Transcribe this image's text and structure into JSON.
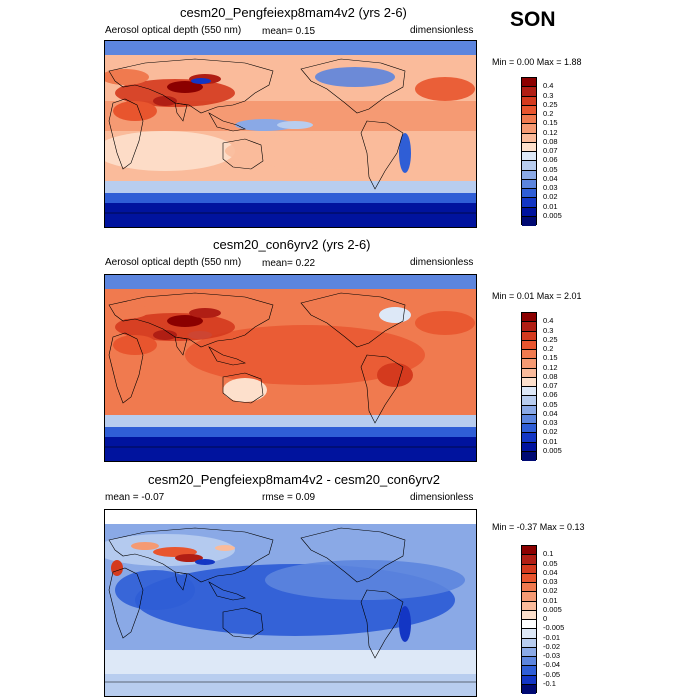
{
  "season": "SON",
  "panels": [
    {
      "title": "cesm20_Pengfeiexp8mam4v2 (yrs 2-6)",
      "left_label": "Aerosol optical depth (550 nm)",
      "stat_label": "mean=  0.15",
      "stat2_label": "",
      "units": "dimensionless",
      "minmax": "Min =  0.00 Max =  1.88",
      "scheme": "abs1",
      "labels": [
        "0.4",
        "0.3",
        "0.25",
        "0.2",
        "0.15",
        "0.12",
        "0.08",
        "0.07",
        "0.06",
        "0.05",
        "0.04",
        "0.03",
        "0.02",
        "0.01",
        "0.005"
      ],
      "colors": [
        "#8b0000",
        "#b01e14",
        "#d43a1e",
        "#e8552e",
        "#f07a4f",
        "#f59a73",
        "#fabb9b",
        "#fde0cc",
        "#dde8f7",
        "#b8cdef",
        "#8aa9e6",
        "#5c85de",
        "#2f5ed6",
        "#1336c4",
        "#00139e",
        "#000a73"
      ]
    },
    {
      "title": "cesm20_con6yrv2 (yrs 2-6)",
      "left_label": "Aerosol optical depth (550 nm)",
      "stat_label": "mean=  0.22",
      "stat2_label": "",
      "units": "dimensionless",
      "minmax": "Min =  0.01 Max =  2.01",
      "scheme": "abs2",
      "labels": [
        "0.4",
        "0.3",
        "0.25",
        "0.2",
        "0.15",
        "0.12",
        "0.08",
        "0.07",
        "0.06",
        "0.05",
        "0.04",
        "0.03",
        "0.02",
        "0.01",
        "0.005"
      ],
      "colors": [
        "#8b0000",
        "#b01e14",
        "#d43a1e",
        "#e8552e",
        "#f07a4f",
        "#f59a73",
        "#fabb9b",
        "#fde0cc",
        "#dde8f7",
        "#b8cdef",
        "#8aa9e6",
        "#5c85de",
        "#2f5ed6",
        "#1336c4",
        "#00139e",
        "#000a73"
      ]
    },
    {
      "title": "cesm20_Pengfeiexp8mam4v2 - cesm20_con6yrv2",
      "left_label": "mean =  -0.07",
      "stat_label": "rmse =  0.09",
      "stat2_label": "",
      "units": "dimensionless",
      "minmax": "Min =  -0.37 Max =  0.13",
      "scheme": "diff",
      "labels": [
        "0.1",
        "0.05",
        "0.04",
        "0.03",
        "0.02",
        "0.01",
        "0.005",
        "0",
        "-0.005",
        "-0.01",
        "-0.02",
        "-0.03",
        "-0.04",
        "-0.05",
        "-0.1"
      ],
      "colors": [
        "#8b0000",
        "#b01e14",
        "#d43a1e",
        "#e8552e",
        "#f07a4f",
        "#f59a73",
        "#fabb9b",
        "#fde0cc",
        "#ffffff",
        "#dde8f7",
        "#b8cdef",
        "#8aa9e6",
        "#5c85de",
        "#2f5ed6",
        "#1336c4",
        "#000a73"
      ]
    }
  ]
}
